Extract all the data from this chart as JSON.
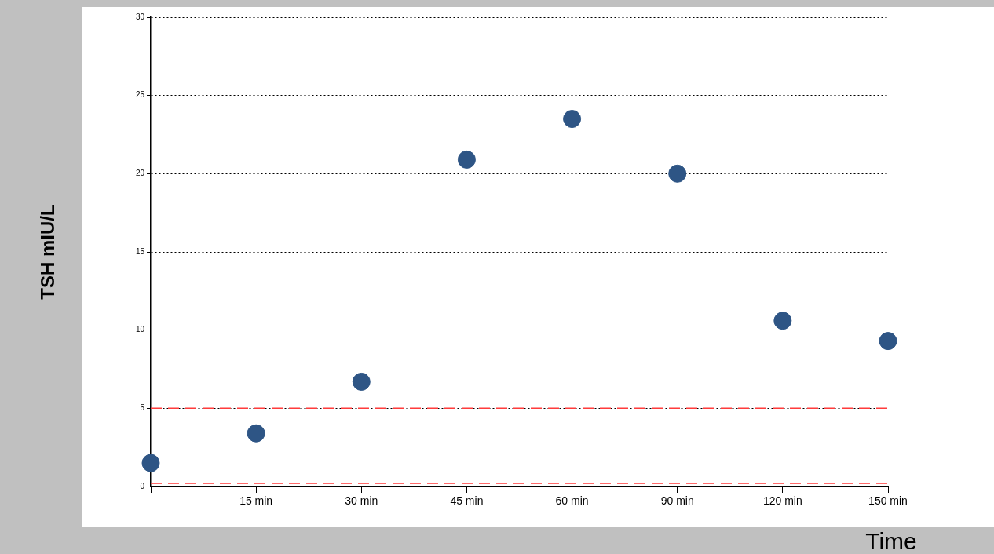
{
  "chart_data": {
    "type": "scatter",
    "xlabel": "Time",
    "ylabel": "TSH mIU/L",
    "categories": [
      null,
      "15 min",
      "30 min",
      "45 min",
      "60 min",
      "90 min",
      "120 min",
      "150 min"
    ],
    "series": [
      {
        "color": "#2e5585",
        "values": [
          1.5,
          3.4,
          6.7,
          20.9,
          23.5,
          20.0,
          10.6,
          9.3
        ]
      }
    ],
    "ylim": [
      0,
      30
    ],
    "yticks": [
      0,
      5,
      10,
      15,
      20,
      25,
      30
    ],
    "grid": "y",
    "legend": false,
    "marker": "circle",
    "ref_lines": [
      {
        "axis": "y",
        "value": 5,
        "color": "#ff3b3b",
        "line_style": "dashed"
      },
      {
        "axis": "y",
        "value": 0.2,
        "color": "#ff3b3b",
        "line_style": "dashed"
      }
    ]
  }
}
